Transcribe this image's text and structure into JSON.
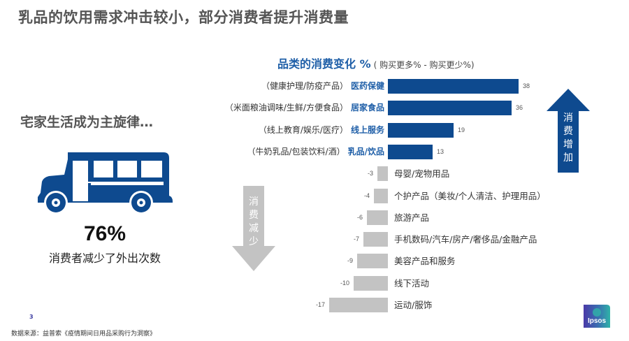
{
  "slide": {
    "title": "乳品的饮用需求冲击较小，部分消费者提升消费量",
    "left_panel": {
      "heading": "宅家生活成为主旋律…",
      "icon": "bus-icon",
      "stat_value": "76%",
      "stat_caption": "消费者减少了外出次数"
    },
    "chart_header": {
      "title": "品类的消费变化 %",
      "subtitle": "( 购买更多% - 购买更少%)"
    },
    "arrows": {
      "up": {
        "label_chars": [
          "消",
          "费",
          "增",
          "加"
        ],
        "color": "#0e4a8f"
      },
      "down": {
        "label_chars": [
          "消",
          "费",
          "减",
          "少"
        ],
        "color": "#c3c3c3"
      }
    },
    "page_number": "3",
    "source": "数据来源：益普索《疫情期间日用品采购行为洞察》",
    "logo_text": "Ipsos",
    "colors": {
      "positive_bar": "#0e4a8f",
      "negative_bar": "#c3c3c3",
      "category_label": "#1f5fa8",
      "title_gray": "#555555"
    }
  },
  "chart_data": {
    "type": "bar",
    "orientation": "horizontal",
    "title": "品类的消费变化 %",
    "subtitle": "( 购买更多% - 购买更少%)",
    "xlabel": "",
    "ylabel": "",
    "grid": false,
    "legend": null,
    "categories": [
      {
        "name": "医药保健",
        "detail": "（健康护理/防疫产品）",
        "value": 38
      },
      {
        "name": "居家食品",
        "detail": "（米面粮油调味/生鲜/方便食品）",
        "value": 36
      },
      {
        "name": "线上服务",
        "detail": "（线上教育/娱乐/医疗）",
        "value": 19
      },
      {
        "name": "乳品/饮品",
        "detail": "（牛奶乳品/包装饮料/酒）",
        "value": 13
      },
      {
        "name": "母婴/宠物用品",
        "detail": "",
        "value": -3
      },
      {
        "name": "个护产品（美妆/个人清洁、护理用品）",
        "detail": "",
        "value": -4
      },
      {
        "name": "旅游产品",
        "detail": "",
        "value": -6
      },
      {
        "name": "手机数码/汽车/房产/奢侈品/金融产品",
        "detail": "",
        "value": -7
      },
      {
        "name": "美容产品和服务",
        "detail": "",
        "value": -9
      },
      {
        "name": "线下活动",
        "detail": "",
        "value": -10
      },
      {
        "name": "运动/服饰",
        "detail": "",
        "value": -17
      }
    ],
    "values": [
      38,
      36,
      19,
      13,
      -3,
      -4,
      -6,
      -7,
      -9,
      -10,
      -17
    ],
    "value_labels": [
      "38",
      "36",
      "19",
      "13",
      "-3",
      "-4",
      "-6",
      "-7",
      "-9",
      "-10",
      "-17"
    ],
    "xlim": [
      -17,
      38
    ],
    "annotations": [
      "消费增加 (up arrow)",
      "消费减少 (down arrow)"
    ]
  }
}
